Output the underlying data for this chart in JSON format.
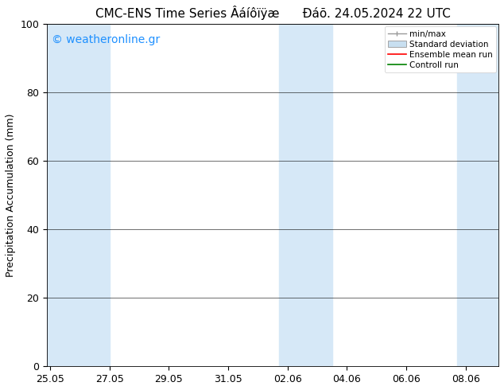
{
  "title": "CMC-ENS Time Series Âáíôïÿæ      Ðáõ. 24.05.2024 22 UTC",
  "ylabel": "Precipitation Accumulation (mm)",
  "ylim": [
    0,
    100
  ],
  "yticks": [
    0,
    20,
    40,
    60,
    80,
    100
  ],
  "x_tick_labels": [
    "25.05",
    "27.05",
    "29.05",
    "31.05",
    "02.06",
    "04.06",
    "06.06",
    "08.06"
  ],
  "x_tick_positions": [
    0,
    2,
    4,
    6,
    8,
    10,
    12,
    14
  ],
  "xlim": [
    -0.1,
    15.1
  ],
  "shaded_bands": [
    {
      "x_start": -0.1,
      "x_end": 2.0,
      "color": "#d6e8f7"
    },
    {
      "x_start": 7.7,
      "x_end": 9.5,
      "color": "#d6e8f7"
    },
    {
      "x_start": 13.7,
      "x_end": 15.1,
      "color": "#d6e8f7"
    }
  ],
  "watermark_text": "© weatheronline.gr",
  "watermark_color": "#1e90ff",
  "watermark_fontsize": 10,
  "legend_labels": [
    "min/max",
    "Standard deviation",
    "Ensemble mean run",
    "Controll run"
  ],
  "legend_colors": [
    "#999999",
    "#c8dff0",
    "#ff0000",
    "#008000"
  ],
  "bg_color": "#ffffff",
  "plot_bg_color": "#ffffff",
  "title_fontsize": 11,
  "axis_fontsize": 9,
  "tick_fontsize": 9
}
